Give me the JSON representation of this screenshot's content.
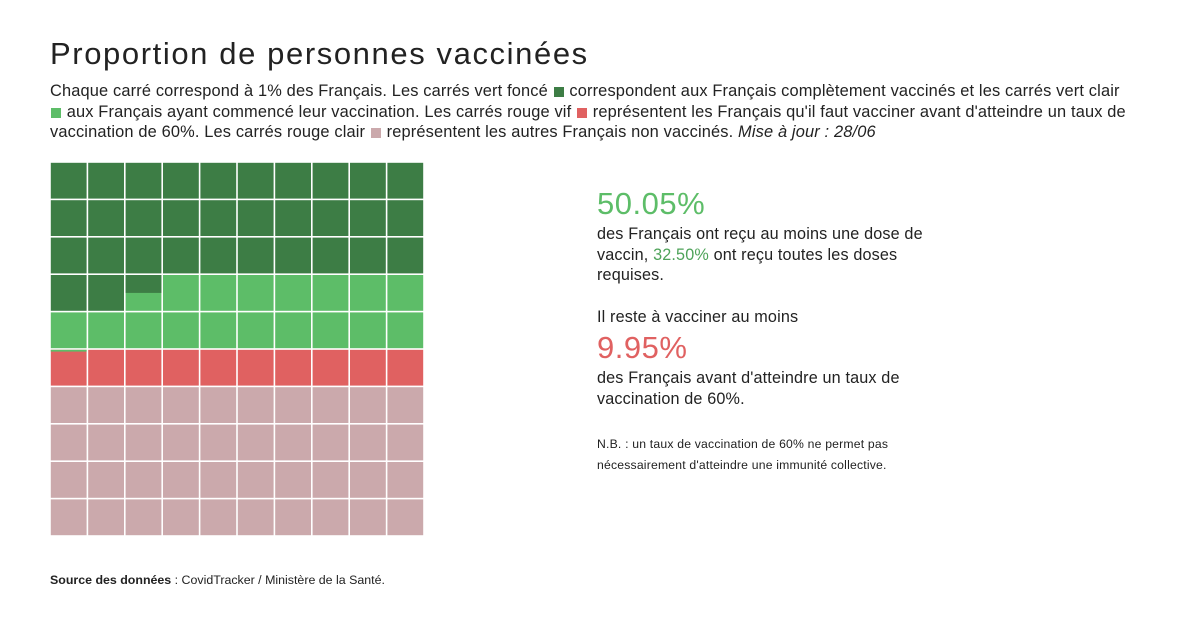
{
  "title": "Proportion de personnes vaccinées",
  "description": {
    "p1": "Chaque carré correspond à 1% des Français. Les carrés vert foncé",
    "p2": "correspondent aux Français complètement vaccinés et les carrés vert clair",
    "p3": "aux Français ayant commencé leur vaccination. Les carrés rouge vif",
    "p4": "représentent les Français qu'il faut vacciner avant d'atteindre un taux de vaccination de 60%. Les carrés rouge clair",
    "p5": "représentent les autres Français non vaccinés.",
    "update": "Mise à jour : 28/06"
  },
  "colors": {
    "dark_green": "#3d7d45",
    "light_green": "#5dbd68",
    "bright_red": "#e06161",
    "light_red": "#cba9ac"
  },
  "chart_data": {
    "type": "waffle",
    "rows": 10,
    "columns": 10,
    "unit": "% des Français",
    "segments": [
      {
        "name": "Complètement vaccinés",
        "value": 32.5,
        "color_key": "dark_green"
      },
      {
        "name": "Vaccination commencée",
        "value": 17.55,
        "color_key": "light_green"
      },
      {
        "name": "À vacciner avant 60%",
        "value": 9.95,
        "color_key": "bright_red"
      },
      {
        "name": "Autres non vaccinés",
        "value": 40.0,
        "color_key": "light_red"
      }
    ]
  },
  "stats": {
    "at_least_one_dose": "50.05%",
    "text_one_dose_a": "des Français ont reçu au moins une dose de vaccin,",
    "fully_vaccinated": "32.50%",
    "text_one_dose_b": "ont reçu toutes les doses requises.",
    "remain_label": "Il reste à vacciner au moins",
    "remain_value": "9.95%",
    "remain_text": "des Français avant d'atteindre un taux de vaccination de 60%.",
    "nb": "N.B. : un taux de vaccination de 60% ne permet pas nécessairement d'atteindre une immunité collective."
  },
  "source": {
    "label": "Source des données",
    "text": " : CovidTracker / Ministère de la Santé."
  }
}
